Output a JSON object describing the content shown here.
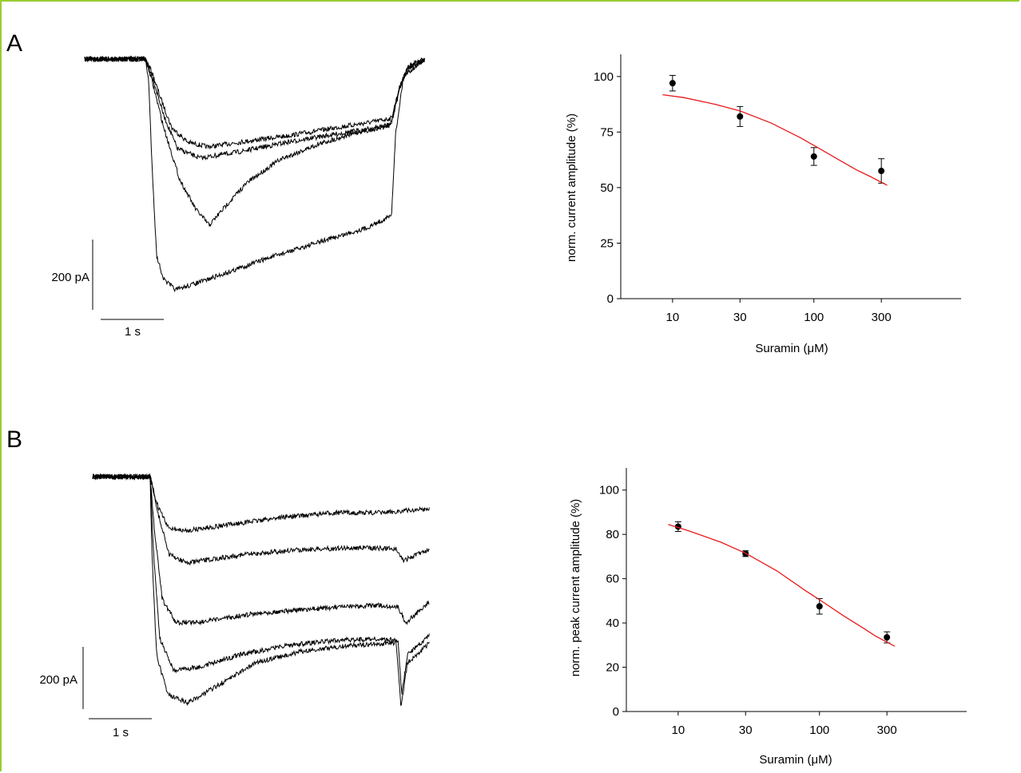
{
  "panels": [
    {
      "letter": "A"
    },
    {
      "letter": "B"
    }
  ],
  "traces": [
    {
      "scale_current": "200 pA",
      "scale_time": "1 s"
    },
    {
      "scale_current": "200 pA",
      "scale_time": "1 s"
    }
  ],
  "chart_data": [
    {
      "type": "scatter",
      "xlabel": "Suramin (μM)",
      "ylabel": "norm. current amplitude (%)",
      "xscale": "log",
      "xticks": [
        10,
        30,
        100,
        300
      ],
      "xtick_labels": [
        "10",
        "30",
        "100",
        "300"
      ],
      "yticks": [
        0,
        25,
        50,
        75,
        100
      ],
      "ytick_labels": [
        "0",
        "25",
        "50",
        "75",
        "100"
      ],
      "ylim": [
        0,
        110
      ],
      "xlim": [
        4.3,
        1100
      ],
      "grid": false,
      "series": [
        {
          "kind": "points_with_error",
          "x": [
            10,
            30,
            100,
            300
          ],
          "y": [
            97,
            82,
            64,
            57.5
          ],
          "err": [
            3.5,
            4.5,
            4,
            5.5
          ],
          "color": "#000000"
        },
        {
          "kind": "fit_line",
          "color": "#e8191c",
          "x": [
            8.5,
            12,
            20,
            30,
            50,
            80,
            100,
            150,
            200,
            250,
            330
          ],
          "y": [
            91.8,
            90.5,
            87.5,
            84.5,
            79.0,
            72.5,
            69.0,
            62.5,
            58.0,
            55.0,
            51.0
          ]
        }
      ]
    },
    {
      "type": "scatter",
      "xlabel": "Suramin (μM)",
      "ylabel": "norm. peak current amplitude (%)",
      "xscale": "log",
      "xticks": [
        10,
        30,
        100,
        300
      ],
      "xtick_labels": [
        "10",
        "30",
        "100",
        "300"
      ],
      "yticks": [
        0,
        20,
        40,
        60,
        80,
        100
      ],
      "ytick_labels": [
        "0",
        "20",
        "40",
        "60",
        "80",
        "100"
      ],
      "ylim": [
        0,
        110
      ],
      "xlim": [
        4.3,
        1100
      ],
      "grid": false,
      "series": [
        {
          "kind": "points_with_error",
          "x": [
            10,
            30,
            100,
            300
          ],
          "y": [
            83.5,
            71.3,
            47.5,
            33.5
          ],
          "err": [
            2.2,
            1.3,
            3.5,
            2.5
          ],
          "color": "#000000"
        },
        {
          "kind": "fit_line",
          "color": "#e8191c",
          "x": [
            8.5,
            12,
            20,
            30,
            50,
            80,
            100,
            150,
            200,
            250,
            340
          ],
          "y": [
            84.5,
            81.5,
            76.5,
            71.5,
            63.5,
            54.5,
            50.5,
            43.0,
            38.0,
            34.0,
            29.5
          ]
        }
      ]
    }
  ]
}
